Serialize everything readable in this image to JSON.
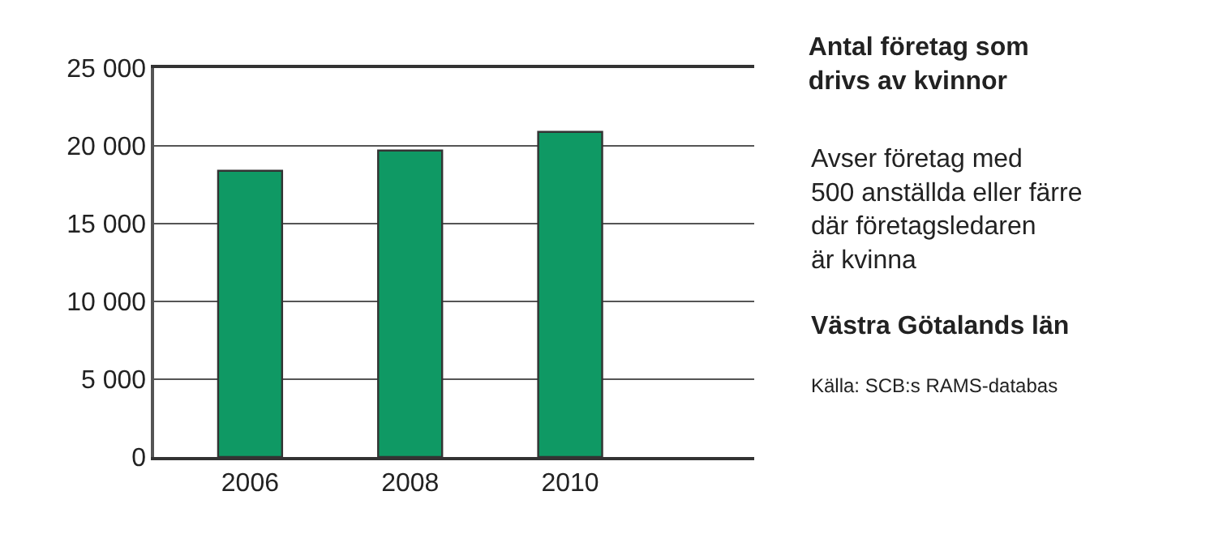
{
  "chart_data": {
    "type": "bar",
    "title": "Antal företag som\ndrivs av kvinnor",
    "subtitle": "Avser företag med\n500 anställda eller färre\ndär företagsledaren\när kvinna",
    "annotations": [
      "Västra Götalands län",
      "Källa: SCB:s RAMS-databas"
    ],
    "categories": [
      "2006",
      "2008",
      "2010"
    ],
    "values": [
      18400,
      19700,
      20900
    ],
    "color": "#0f9964",
    "ylim": [
      0,
      25000
    ],
    "yticks": [
      0,
      {
        "value": 5000,
        "label": "5 000"
      },
      {
        "value": 10000,
        "label": "10 000"
      },
      {
        "value": 15000,
        "label": "15 000"
      },
      {
        "value": 20000,
        "label": "20 000"
      },
      {
        "value": 25000,
        "label": "25 000"
      }
    ],
    "grid": "y",
    "legend": false
  }
}
